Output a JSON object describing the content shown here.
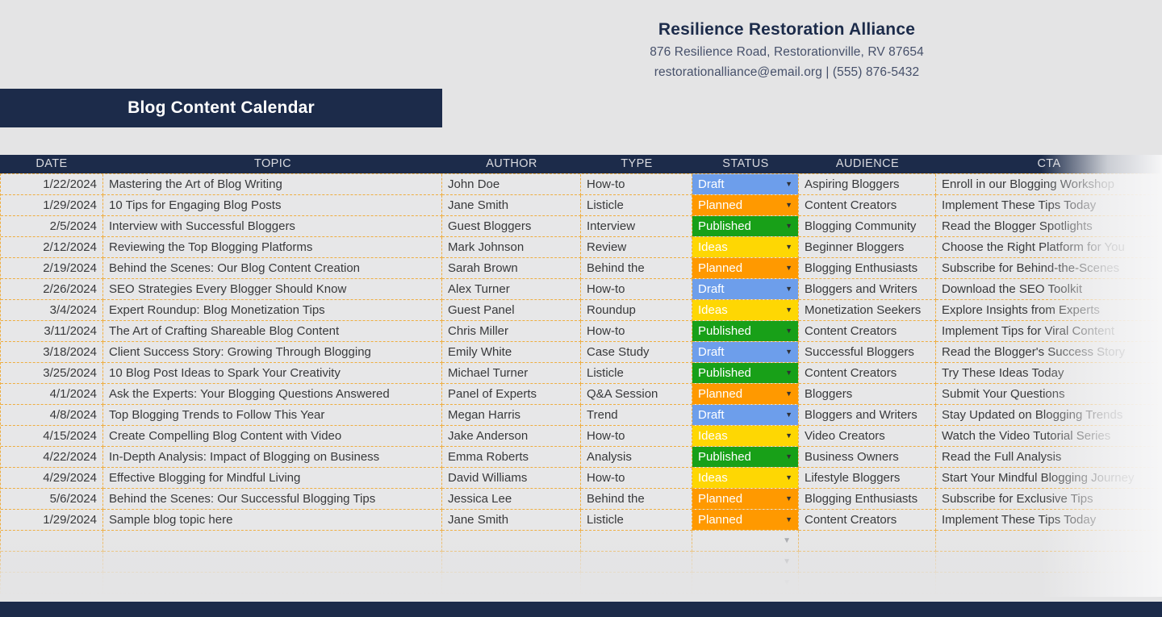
{
  "org": {
    "name": "Resilience Restoration Alliance",
    "address": "876 Resilience Road, Restorationville, RV 87654",
    "contact": "restorationalliance@email.org | (555) 876-5432"
  },
  "banner": {
    "title": "Blog Content Calendar"
  },
  "icons": {
    "dropdown": "▼"
  },
  "colors": {
    "navy": "#1c2b4a",
    "border_orange": "#efae41",
    "page_bg": "#e4e4e5"
  },
  "table": {
    "columns": [
      "DATE",
      "TOPIC",
      "AUTHOR",
      "TYPE",
      "STATUS",
      "AUDIENCE",
      "CTA"
    ],
    "status_colors": {
      "Draft": "#6d9eeb",
      "Planned": "#ff9900",
      "Published": "#18a018",
      "Ideas": "#fed703"
    },
    "empty_rows": 3,
    "rows": [
      {
        "date": "1/22/2024",
        "topic": "Mastering the Art of Blog Writing",
        "author": "John Doe",
        "type": "How-to",
        "status": "Draft",
        "audience": "Aspiring Bloggers",
        "cta": "Enroll in our Blogging Workshop"
      },
      {
        "date": "1/29/2024",
        "topic": "10 Tips for Engaging Blog Posts",
        "author": "Jane Smith",
        "type": "Listicle",
        "status": "Planned",
        "audience": "Content Creators",
        "cta": "Implement These Tips Today"
      },
      {
        "date": "2/5/2024",
        "topic": "Interview with Successful Bloggers",
        "author": "Guest Bloggers",
        "type": "Interview",
        "status": "Published",
        "audience": "Blogging Community",
        "cta": "Read the Blogger Spotlights"
      },
      {
        "date": "2/12/2024",
        "topic": "Reviewing the Top Blogging Platforms",
        "author": "Mark Johnson",
        "type": "Review",
        "status": "Ideas",
        "audience": "Beginner Bloggers",
        "cta": "Choose the Right Platform for You"
      },
      {
        "date": "2/19/2024",
        "topic": "Behind the Scenes: Our Blog Content Creation",
        "author": "Sarah Brown",
        "type": "Behind the",
        "status": "Planned",
        "audience": "Blogging Enthusiasts",
        "cta": "Subscribe for Behind-the-Scenes"
      },
      {
        "date": "2/26/2024",
        "topic": "SEO Strategies Every Blogger Should Know",
        "author": "Alex Turner",
        "type": "How-to",
        "status": "Draft",
        "audience": "Bloggers and Writers",
        "cta": "Download the SEO Toolkit"
      },
      {
        "date": "3/4/2024",
        "topic": "Expert Roundup: Blog Monetization Tips",
        "author": "Guest Panel",
        "type": "Roundup",
        "status": "Ideas",
        "audience": "Monetization Seekers",
        "cta": "Explore Insights from Experts"
      },
      {
        "date": "3/11/2024",
        "topic": "The Art of Crafting Shareable Blog Content",
        "author": "Chris Miller",
        "type": "How-to",
        "status": "Published",
        "audience": "Content Creators",
        "cta": "Implement Tips for Viral Content"
      },
      {
        "date": "3/18/2024",
        "topic": "Client Success Story: Growing Through Blogging",
        "author": "Emily White",
        "type": "Case Study",
        "status": "Draft",
        "audience": "Successful Bloggers",
        "cta": "Read the Blogger's Success Story"
      },
      {
        "date": "3/25/2024",
        "topic": "10 Blog Post Ideas to Spark Your Creativity",
        "author": "Michael Turner",
        "type": "Listicle",
        "status": "Published",
        "audience": "Content Creators",
        "cta": "Try These Ideas Today"
      },
      {
        "date": "4/1/2024",
        "topic": "Ask the Experts: Your Blogging Questions Answered",
        "author": "Panel of Experts",
        "type": "Q&A Session",
        "status": "Planned",
        "audience": "Bloggers",
        "cta": "Submit Your Questions"
      },
      {
        "date": "4/8/2024",
        "topic": "Top Blogging Trends to Follow This Year",
        "author": "Megan Harris",
        "type": "Trend",
        "status": "Draft",
        "audience": "Bloggers and Writers",
        "cta": "Stay Updated on Blogging Trends"
      },
      {
        "date": "4/15/2024",
        "topic": "Create Compelling Blog Content with Video",
        "author": "Jake Anderson",
        "type": "How-to",
        "status": "Ideas",
        "audience": "Video Creators",
        "cta": "Watch the Video Tutorial Series"
      },
      {
        "date": "4/22/2024",
        "topic": "In-Depth Analysis: Impact of Blogging on Business",
        "author": "Emma Roberts",
        "type": "Analysis",
        "status": "Published",
        "audience": "Business Owners",
        "cta": "Read the Full Analysis"
      },
      {
        "date": "4/29/2024",
        "topic": "Effective Blogging for Mindful Living",
        "author": "David Williams",
        "type": "How-to",
        "status": "Ideas",
        "audience": "Lifestyle Bloggers",
        "cta": "Start Your Mindful Blogging Journey"
      },
      {
        "date": "5/6/2024",
        "topic": "Behind the Scenes: Our Successful Blogging Tips",
        "author": "Jessica Lee",
        "type": "Behind the",
        "status": "Planned",
        "audience": "Blogging Enthusiasts",
        "cta": "Subscribe for Exclusive Tips"
      },
      {
        "date": "1/29/2024",
        "topic": "Sample blog topic here",
        "author": "Jane Smith",
        "type": "Listicle",
        "status": "Planned",
        "audience": "Content Creators",
        "cta": "Implement These Tips Today"
      }
    ]
  }
}
